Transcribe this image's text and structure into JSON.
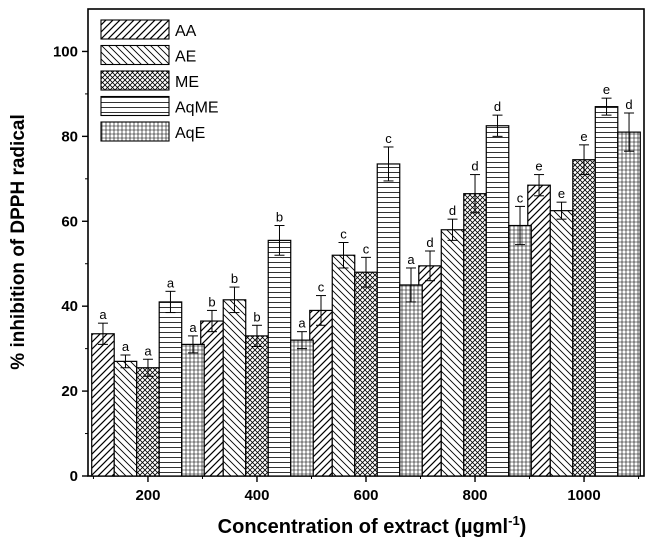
{
  "chart_data": {
    "type": "bar",
    "xlabel": "Concentration of extract (µgml",
    "xlabel_superscript": "-1",
    "xlabel_suffix": ")",
    "ylabel": "% inhibition of DPPH radical",
    "ylim": [
      0,
      110
    ],
    "yticks": [
      0,
      20,
      40,
      60,
      80,
      100
    ],
    "categories": [
      "200",
      "400",
      "600",
      "800",
      "1000"
    ],
    "legend_position": "top-left",
    "series": [
      {
        "name": "AA",
        "pattern": "diag-forward",
        "values": [
          33.5,
          36.5,
          39.0,
          49.5,
          68.5
        ],
        "errors": [
          2.5,
          2.5,
          3.5,
          3.5,
          2.5
        ],
        "labels": [
          "a",
          "b",
          "c",
          "d",
          "e"
        ]
      },
      {
        "name": "AE",
        "pattern": "diag-back",
        "values": [
          27.0,
          41.5,
          52.0,
          58.0,
          62.5
        ],
        "errors": [
          1.5,
          3.0,
          3.0,
          2.5,
          2.0
        ],
        "labels": [
          "a",
          "b",
          "c",
          "d",
          "e"
        ]
      },
      {
        "name": "ME",
        "pattern": "crosshatch",
        "values": [
          25.5,
          33.0,
          48.0,
          66.5,
          74.5
        ],
        "errors": [
          2.0,
          2.5,
          3.5,
          4.5,
          3.5
        ],
        "labels": [
          "a",
          "b",
          "c",
          "d",
          "e"
        ]
      },
      {
        "name": "AqME",
        "pattern": "horizontal",
        "values": [
          41.0,
          55.5,
          73.5,
          82.5,
          87.0
        ],
        "errors": [
          2.5,
          3.5,
          4.0,
          2.5,
          2.0
        ],
        "labels": [
          "a",
          "b",
          "c",
          "d",
          "e"
        ]
      },
      {
        "name": "AqE",
        "pattern": "grid",
        "values": [
          31.0,
          32.0,
          45.0,
          59.0,
          81.0
        ],
        "errors": [
          2.0,
          2.0,
          4.0,
          4.5,
          4.5
        ],
        "labels": [
          "a",
          "a",
          "a",
          "c",
          "d"
        ]
      }
    ]
  }
}
